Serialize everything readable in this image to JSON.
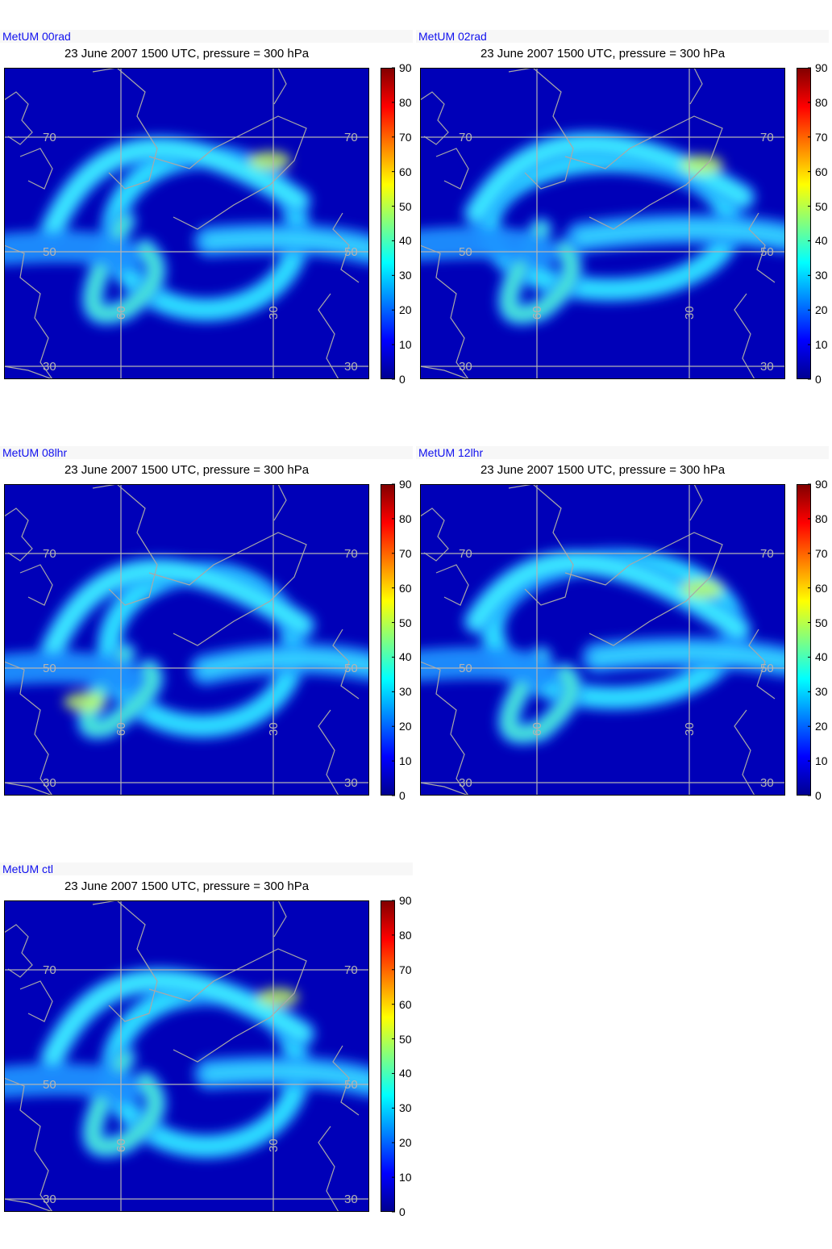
{
  "figure": {
    "subtitle": "23 June 2007 1500 UTC, pressure = 300 hPa",
    "panels": [
      {
        "name": "MetUM 00rad",
        "variant": 0
      },
      {
        "name": "MetUM 02rad",
        "variant": 1
      },
      {
        "name": "MetUM 08lhr",
        "variant": 2
      },
      {
        "name": "MetUM 12lhr",
        "variant": 3
      },
      {
        "name": "MetUM ctl",
        "variant": 4
      }
    ],
    "colorbar": {
      "min": 0,
      "max": 90,
      "ticks": [
        "0",
        "10",
        "20",
        "30",
        "40",
        "50",
        "60",
        "70",
        "80",
        "90"
      ],
      "colormap": "jet",
      "stops": [
        "#00008f",
        "#0000ff",
        "#0080ff",
        "#00ffff",
        "#80ff80",
        "#ffff00",
        "#ff8000",
        "#ff0000",
        "#800000"
      ]
    },
    "grid_labels": {
      "lat": [
        "70",
        "50",
        "30"
      ],
      "lon": [
        "60",
        "30"
      ]
    },
    "colors": {
      "panel_name": "#1010ee",
      "graticule": "#b4b4b4",
      "coast": "#a8a8a8"
    }
  }
}
